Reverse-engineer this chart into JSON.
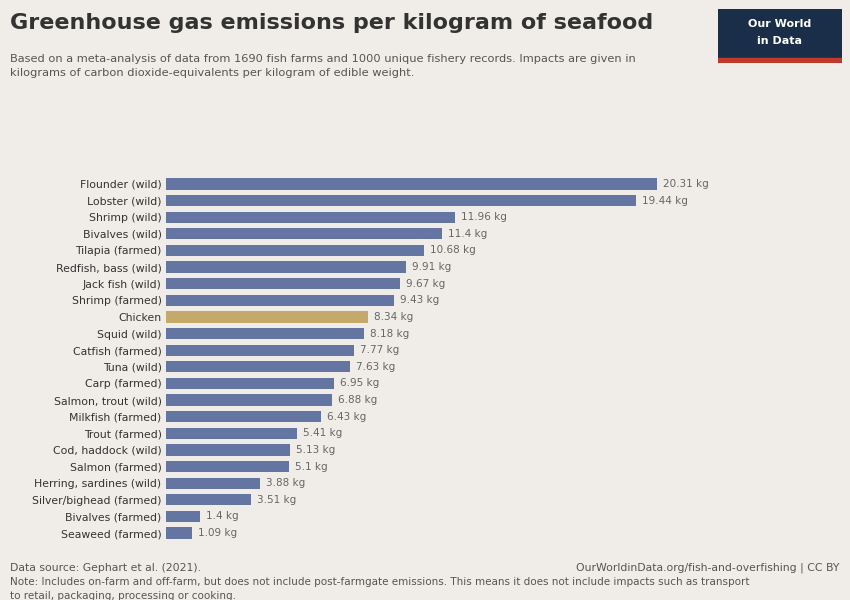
{
  "title": "Greenhouse gas emissions per kilogram of seafood",
  "subtitle": "Based on a meta-analysis of data from 1690 fish farms and 1000 unique fishery records. Impacts are given in\nkilograms of carbon dioxide-equivalents per kilogram of edible weight.",
  "categories": [
    "Flounder (wild)",
    "Lobster (wild)",
    "Shrimp (wild)",
    "Bivalves (wild)",
    "Tilapia (farmed)",
    "Redfish, bass (wild)",
    "Jack fish (wild)",
    "Shrimp (farmed)",
    "Chicken",
    "Squid (wild)",
    "Catfish (farmed)",
    "Tuna (wild)",
    "Carp (farmed)",
    "Salmon, trout (wild)",
    "Milkfish (farmed)",
    "Trout (farmed)",
    "Cod, haddock (wild)",
    "Salmon (farmed)",
    "Herring, sardines (wild)",
    "Silver/bighead (farmed)",
    "Bivalves (farmed)",
    "Seaweed (farmed)"
  ],
  "values": [
    20.31,
    19.44,
    11.96,
    11.4,
    10.68,
    9.91,
    9.67,
    9.43,
    8.34,
    8.18,
    7.77,
    7.63,
    6.95,
    6.88,
    6.43,
    5.41,
    5.13,
    5.1,
    3.88,
    3.51,
    1.4,
    1.09
  ],
  "labels": [
    "20.31 kg",
    "19.44 kg",
    "11.96 kg",
    "11.4 kg",
    "10.68 kg",
    "9.91 kg",
    "9.67 kg",
    "9.43 kg",
    "8.34 kg",
    "8.18 kg",
    "7.77 kg",
    "7.63 kg",
    "6.95 kg",
    "6.88 kg",
    "6.43 kg",
    "5.41 kg",
    "5.13 kg",
    "5.1 kg",
    "3.88 kg",
    "3.51 kg",
    "1.4 kg",
    "1.09 kg"
  ],
  "bar_color_default": "#6375a0",
  "bar_color_chicken": "#c4a96a",
  "chicken_name": "Chicken",
  "background_color": "#f0ede8",
  "text_color": "#333333",
  "label_color": "#666666",
  "data_source": "Data source: Gephart et al. (2021).",
  "url": "OurWorldinData.org/fish-and-overfishing | CC BY",
  "note": "Note: Includes on-farm and off-farm, but does not include post-farmgate emissions. This means it does not include impacts such as transport\nto retail, packaging, processing or cooking.",
  "xlim": [
    0,
    23
  ],
  "logo_bg": "#1a2e4a",
  "logo_text1": "Our World",
  "logo_text2": "in Data",
  "logo_red": "#c0392b"
}
